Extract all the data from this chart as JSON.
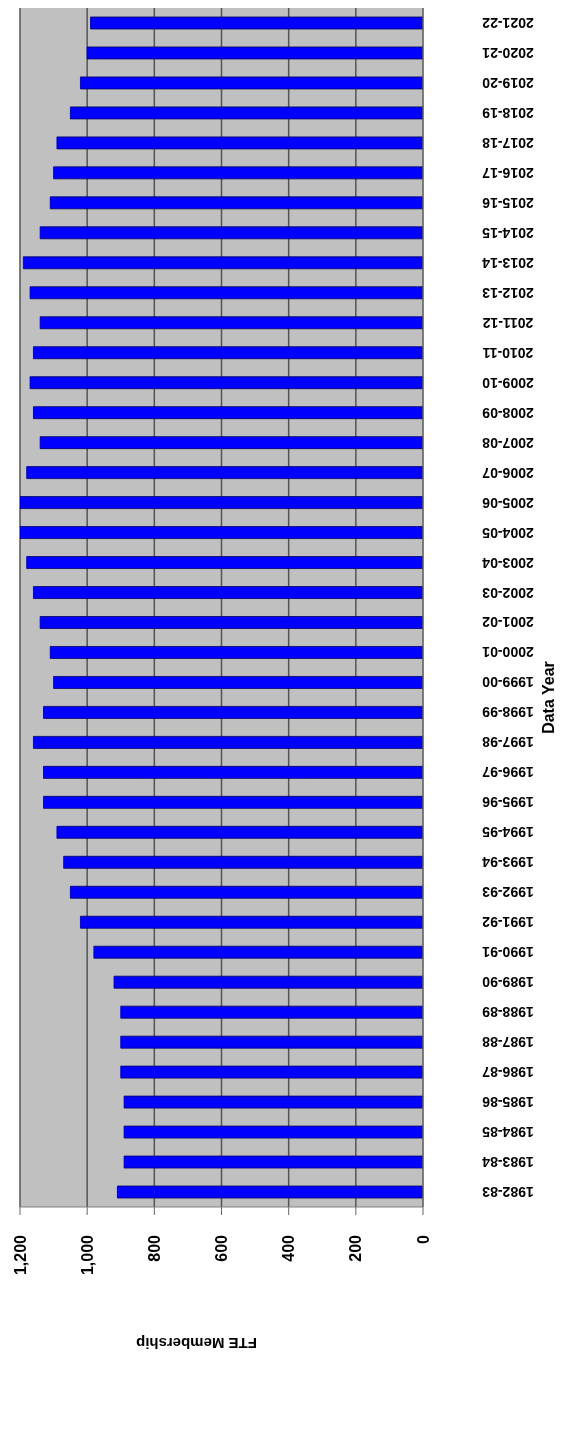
{
  "chart_data": {
    "type": "bar",
    "orientation": "horizontal",
    "xlabel": "FTE Membership",
    "ylabel": "Data Year",
    "categories": [
      "2021-22",
      "2020-21",
      "2019-20",
      "2018-19",
      "2017-18",
      "2016-17",
      "2015-16",
      "2014-15",
      "2013-14",
      "2012-13",
      "2011-12",
      "2010-11",
      "2009-10",
      "2008-09",
      "2007-08",
      "2006-07",
      "2005-06",
      "2004-05",
      "2003-04",
      "2002-03",
      "2001-02",
      "2000-01",
      "1999-00",
      "1998-99",
      "1997-98",
      "1996-97",
      "1995-96",
      "1994-95",
      "1993-94",
      "1992-93",
      "1991-92",
      "1990-91",
      "1989-90",
      "1988-89",
      "1987-88",
      "1986-87",
      "1985-86",
      "1984-85",
      "1983-84",
      "1982-83"
    ],
    "values": [
      990,
      1000,
      1020,
      1050,
      1090,
      1100,
      1110,
      1140,
      1190,
      1170,
      1140,
      1160,
      1170,
      1160,
      1140,
      1180,
      1200,
      1200,
      1180,
      1160,
      1140,
      1110,
      1100,
      1130,
      1160,
      1130,
      1130,
      1090,
      1070,
      1050,
      1020,
      980,
      920,
      900,
      900,
      900,
      890,
      890,
      890,
      910
    ],
    "color": "#0000ff",
    "xlim": [
      1200,
      0
    ],
    "xticks": [
      {
        "value": 1200,
        "label": "1,200"
      },
      {
        "value": 1000,
        "label": "1,000"
      },
      800,
      600,
      400,
      200,
      0
    ],
    "grid": "x",
    "legend": false
  }
}
